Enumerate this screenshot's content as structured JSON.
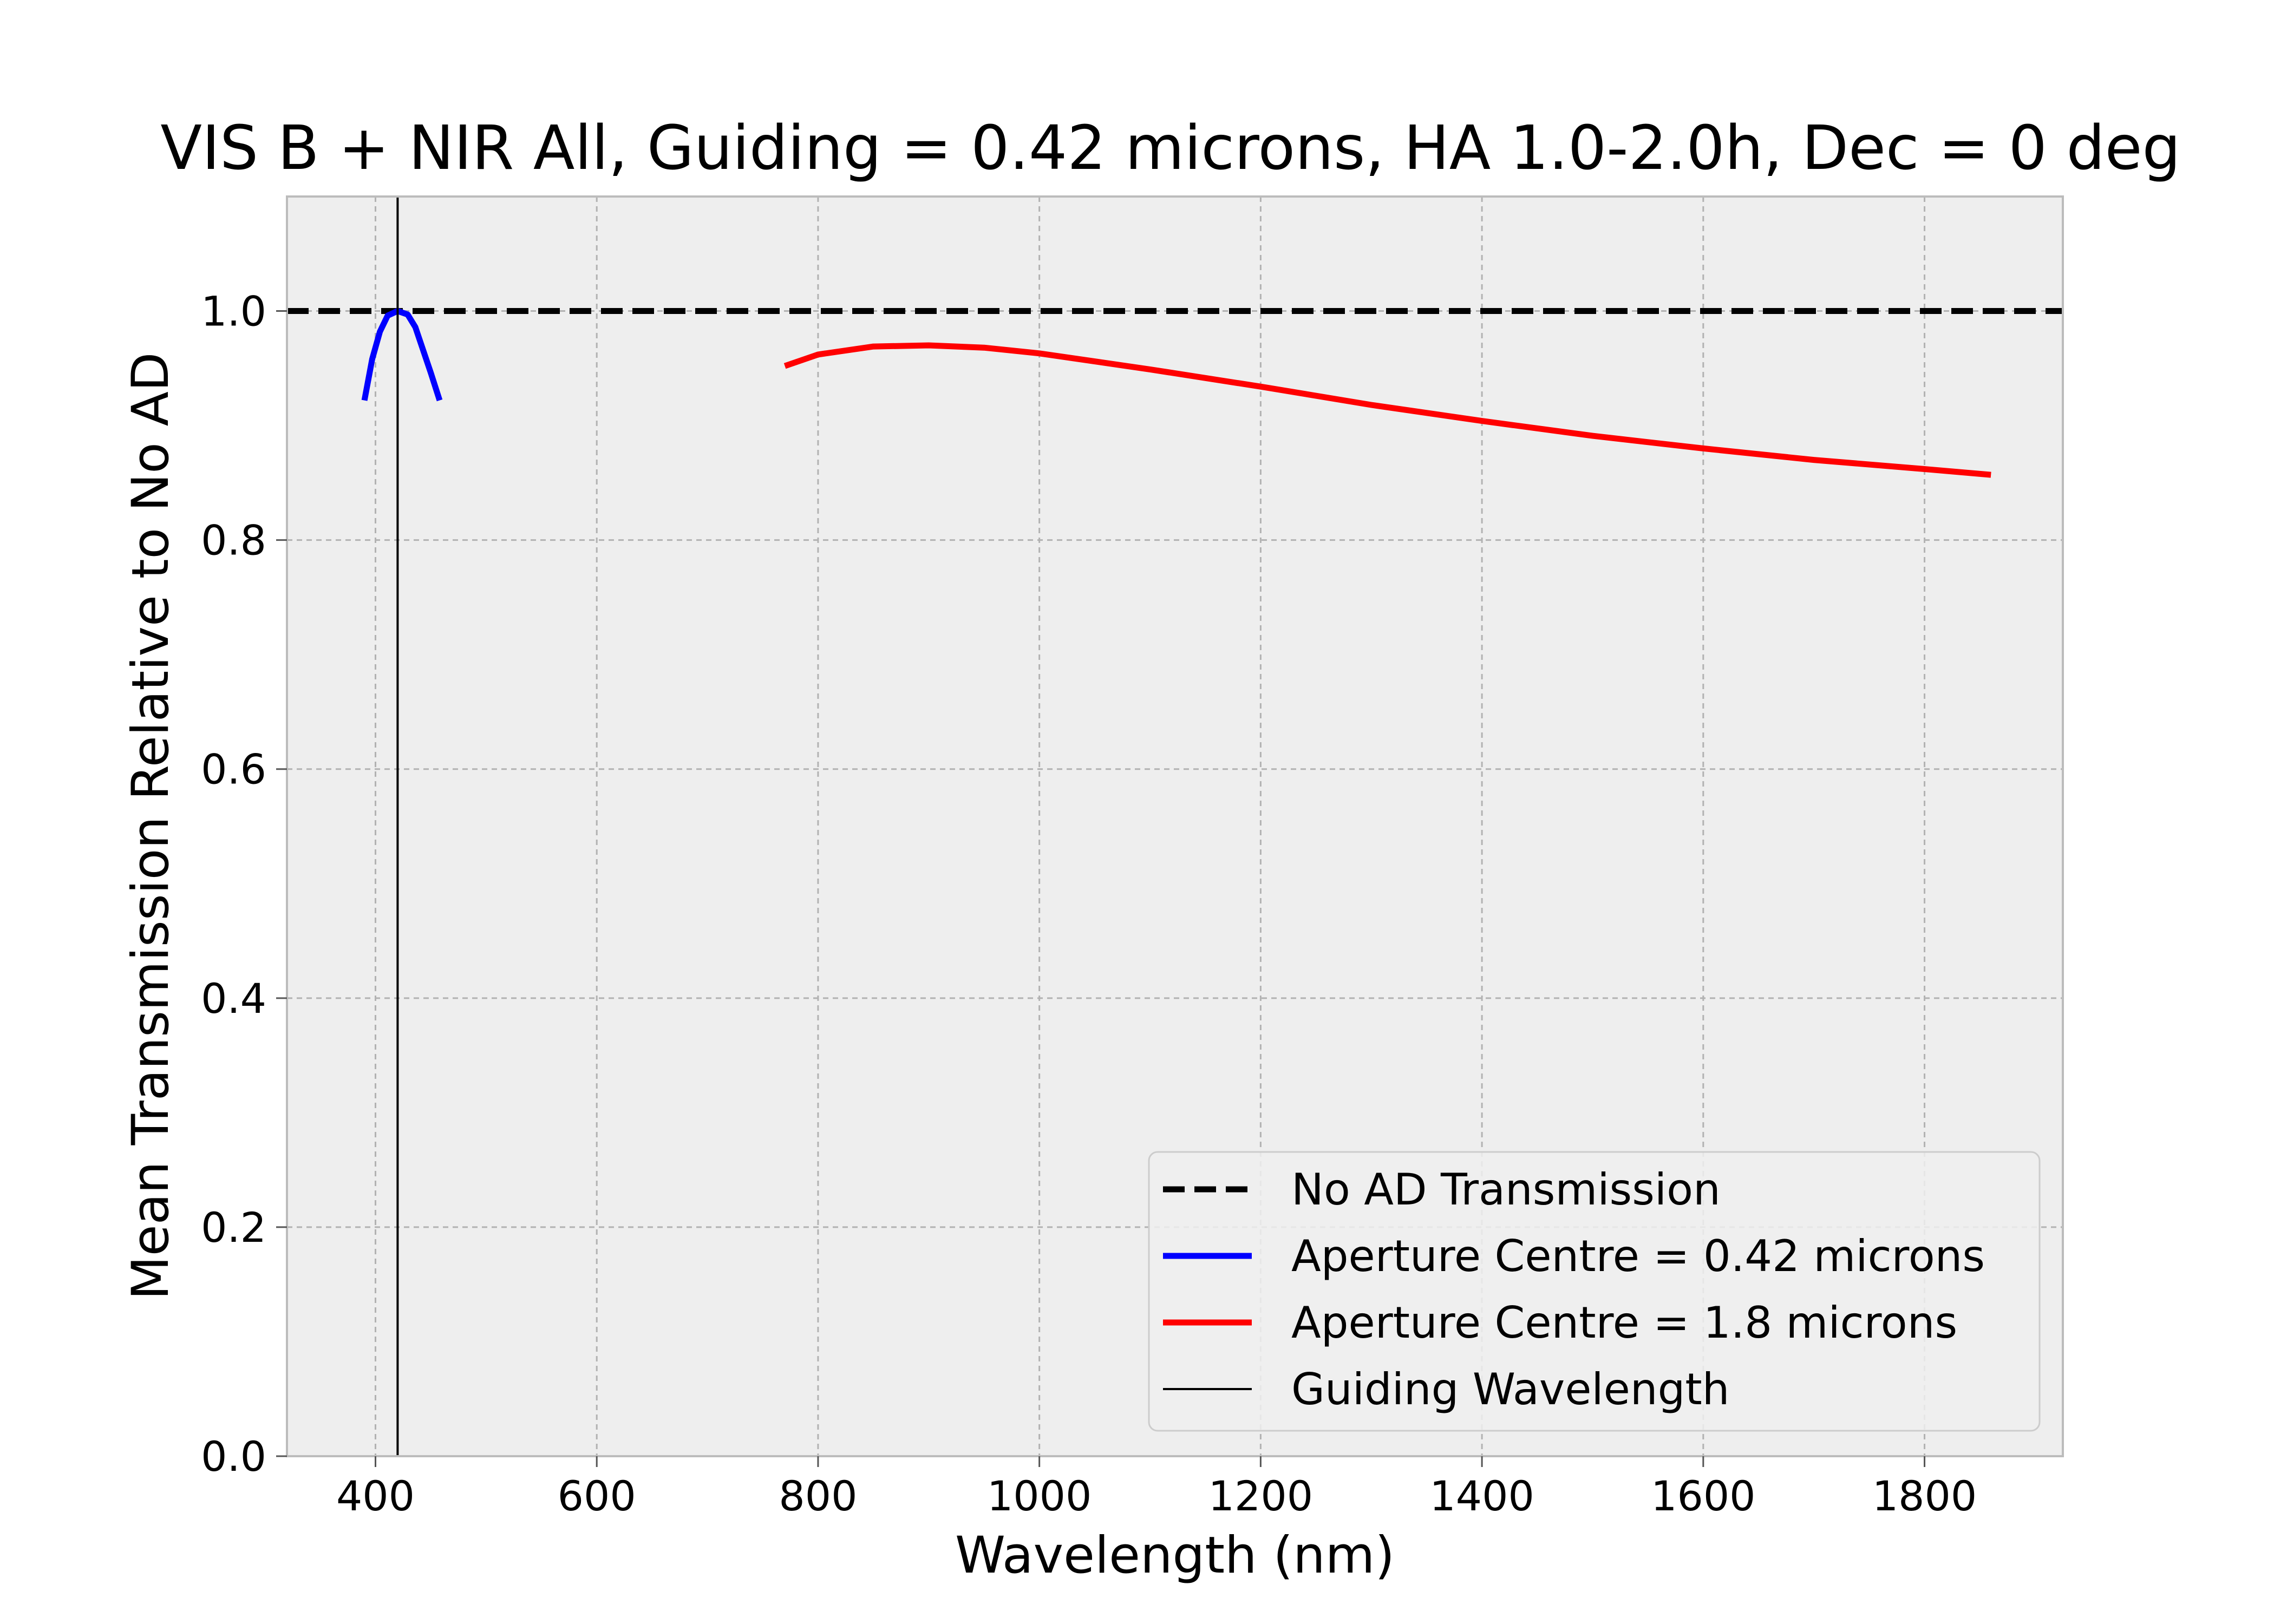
{
  "chart_data": {
    "type": "line",
    "title": "VIS B + NIR All, Guiding = 0.42 microns, HA 1.0-2.0h, Dec = 0 deg",
    "xlabel": "Wavelength (nm)",
    "ylabel": "Mean Transmission Relative to No AD",
    "xlim": [
      320,
      1925
    ],
    "ylim": [
      0.0,
      1.1
    ],
    "xticks": [
      400,
      600,
      800,
      1000,
      1200,
      1400,
      1600,
      1800
    ],
    "yticks": [
      0.0,
      0.2,
      0.4,
      0.6,
      0.8,
      1.0
    ],
    "xtick_labels": [
      "400",
      "600",
      "800",
      "1000",
      "1200",
      "1400",
      "1600",
      "1800"
    ],
    "ytick_labels": [
      "0.0",
      "0.2",
      "0.4",
      "0.6",
      "0.8",
      "1.0"
    ],
    "grid": true,
    "legend_position": "lower-right",
    "series": [
      {
        "name": "No AD Transmission",
        "style": "dashed",
        "color": "#000000",
        "x": [
          320,
          1925
        ],
        "y": [
          1.0,
          1.0
        ]
      },
      {
        "name": "Aperture Centre = 0.42 microns",
        "style": "solid",
        "color": "#0000ff",
        "x": [
          390,
          397,
          404,
          411,
          420,
          429,
          436,
          443,
          450,
          458
        ],
        "y": [
          0.922,
          0.958,
          0.982,
          0.996,
          1.0,
          0.997,
          0.986,
          0.966,
          0.946,
          0.922
        ]
      },
      {
        "name": "Aperture Centre = 1.8 microns",
        "style": "solid",
        "color": "#ff0000",
        "x": [
          770,
          800,
          850,
          900,
          950,
          1000,
          1100,
          1200,
          1300,
          1400,
          1500,
          1600,
          1700,
          1800,
          1860
        ],
        "y": [
          0.952,
          0.962,
          0.969,
          0.97,
          0.968,
          0.963,
          0.949,
          0.934,
          0.918,
          0.904,
          0.891,
          0.88,
          0.87,
          0.862,
          0.857
        ]
      },
      {
        "name": "Guiding Wavelength",
        "style": "vline",
        "color": "#000000",
        "x": [
          420,
          420
        ],
        "y": [
          0.0,
          1.1
        ]
      }
    ]
  }
}
